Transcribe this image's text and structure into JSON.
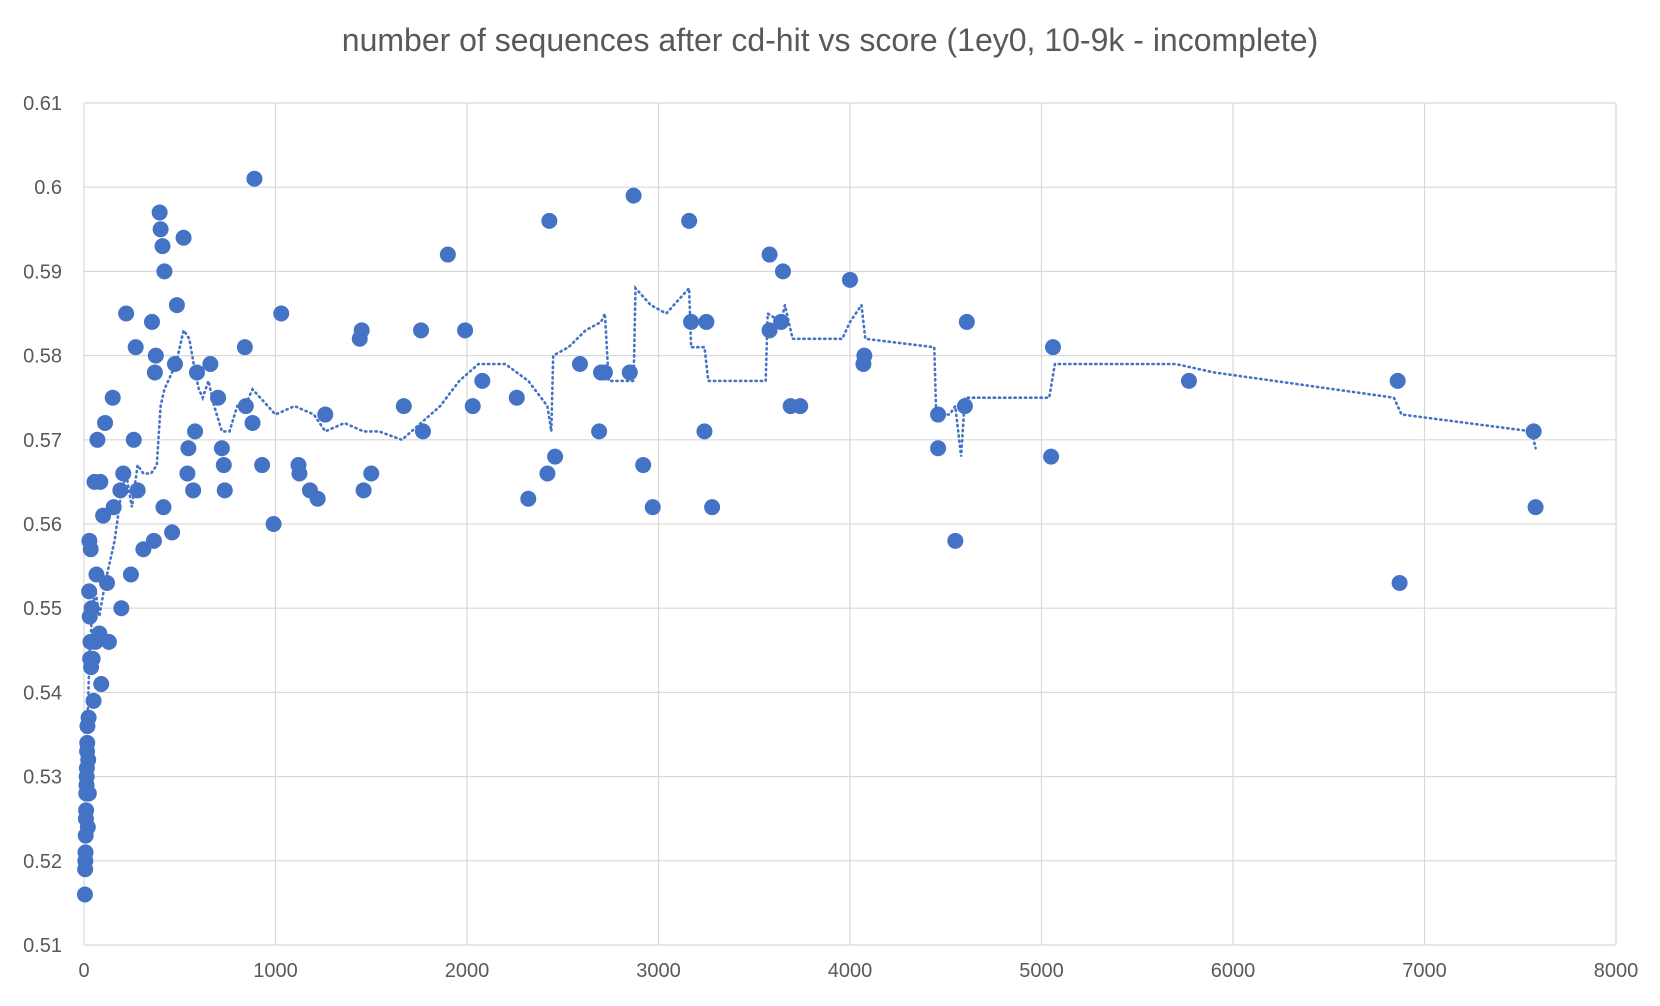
{
  "chart_data": {
    "type": "scatter",
    "title": "number of sequences after cd-hit vs score (1ey0, 10-9k - incomplete)",
    "xlabel": "",
    "ylabel": "",
    "xlim": [
      0,
      8000
    ],
    "ylim": [
      0.51,
      0.61
    ],
    "x_ticks": [
      0,
      1000,
      2000,
      3000,
      4000,
      5000,
      6000,
      7000,
      8000
    ],
    "y_ticks": [
      0.51,
      0.52,
      0.53,
      0.54,
      0.55,
      0.56,
      0.57,
      0.58,
      0.59,
      0.6,
      0.61
    ],
    "x_tick_labels": [
      "0",
      "1000",
      "2000",
      "3000",
      "4000",
      "5000",
      "6000",
      "7000",
      "8000"
    ],
    "y_tick_labels": [
      "0.51",
      "0.52",
      "0.53",
      "0.54",
      "0.55",
      "0.56",
      "0.57",
      "0.58",
      "0.59",
      "0.6",
      "0.61"
    ],
    "grid": true,
    "legend": "none",
    "colors": {
      "points": "#4472C4",
      "trendline": "#4472C4",
      "grid": "#D9D9D9",
      "text": "#595959"
    },
    "series": [
      {
        "points": [
          [
            5,
            0.516
          ],
          [
            6,
            0.519
          ],
          [
            7,
            0.52
          ],
          [
            8,
            0.521
          ],
          [
            9,
            0.523
          ],
          [
            10,
            0.525
          ],
          [
            11,
            0.526
          ],
          [
            12,
            0.528
          ],
          [
            13,
            0.529
          ],
          [
            14,
            0.53
          ],
          [
            15,
            0.531
          ],
          [
            16,
            0.533
          ],
          [
            17,
            0.534
          ],
          [
            18,
            0.536
          ],
          [
            20,
            0.524
          ],
          [
            22,
            0.532
          ],
          [
            24,
            0.537
          ],
          [
            25,
            0.528
          ],
          [
            27,
            0.552
          ],
          [
            28,
            0.558
          ],
          [
            30,
            0.549
          ],
          [
            32,
            0.544
          ],
          [
            34,
            0.546
          ],
          [
            35,
            0.557
          ],
          [
            37,
            0.543
          ],
          [
            40,
            0.55
          ],
          [
            45,
            0.544
          ],
          [
            50,
            0.539
          ],
          [
            55,
            0.565
          ],
          [
            60,
            0.546
          ],
          [
            65,
            0.554
          ],
          [
            70,
            0.57
          ],
          [
            80,
            0.547
          ],
          [
            85,
            0.565
          ],
          [
            90,
            0.541
          ],
          [
            100,
            0.561
          ],
          [
            110,
            0.572
          ],
          [
            120,
            0.553
          ],
          [
            130,
            0.546
          ],
          [
            150,
            0.575
          ],
          [
            155,
            0.562
          ],
          [
            190,
            0.564
          ],
          [
            195,
            0.55
          ],
          [
            205,
            0.566
          ],
          [
            220,
            0.585
          ],
          [
            245,
            0.554
          ],
          [
            260,
            0.57
          ],
          [
            270,
            0.581
          ],
          [
            280,
            0.564
          ],
          [
            310,
            0.557
          ],
          [
            355,
            0.584
          ],
          [
            365,
            0.558
          ],
          [
            370,
            0.578
          ],
          [
            375,
            0.58
          ],
          [
            395,
            0.597
          ],
          [
            400,
            0.595
          ],
          [
            410,
            0.593
          ],
          [
            415,
            0.562
          ],
          [
            420,
            0.59
          ],
          [
            460,
            0.559
          ],
          [
            475,
            0.579
          ],
          [
            485,
            0.586
          ],
          [
            520,
            0.594
          ],
          [
            540,
            0.566
          ],
          [
            545,
            0.569
          ],
          [
            570,
            0.564
          ],
          [
            580,
            0.571
          ],
          [
            590,
            0.578
          ],
          [
            660,
            0.579
          ],
          [
            700,
            0.575
          ],
          [
            720,
            0.569
          ],
          [
            730,
            0.567
          ],
          [
            735,
            0.564
          ],
          [
            840,
            0.581
          ],
          [
            845,
            0.574
          ],
          [
            880,
            0.572
          ],
          [
            890,
            0.601
          ],
          [
            930,
            0.567
          ],
          [
            990,
            0.56
          ],
          [
            1030,
            0.585
          ],
          [
            1120,
            0.567
          ],
          [
            1125,
            0.566
          ],
          [
            1180,
            0.564
          ],
          [
            1220,
            0.563
          ],
          [
            1260,
            0.573
          ],
          [
            1440,
            0.582
          ],
          [
            1450,
            0.583
          ],
          [
            1460,
            0.564
          ],
          [
            1500,
            0.566
          ],
          [
            1670,
            0.574
          ],
          [
            1760,
            0.583
          ],
          [
            1770,
            0.571
          ],
          [
            1900,
            0.592
          ],
          [
            1990,
            0.583
          ],
          [
            2030,
            0.574
          ],
          [
            2080,
            0.577
          ],
          [
            2260,
            0.575
          ],
          [
            2320,
            0.563
          ],
          [
            2420,
            0.566
          ],
          [
            2430,
            0.596
          ],
          [
            2460,
            0.568
          ],
          [
            2590,
            0.579
          ],
          [
            2690,
            0.571
          ],
          [
            2700,
            0.578
          ],
          [
            2720,
            0.578
          ],
          [
            2850,
            0.578
          ],
          [
            2870,
            0.599
          ],
          [
            2920,
            0.567
          ],
          [
            2970,
            0.562
          ],
          [
            3160,
            0.596
          ],
          [
            3170,
            0.584
          ],
          [
            3240,
            0.571
          ],
          [
            3250,
            0.584
          ],
          [
            3280,
            0.562
          ],
          [
            3580,
            0.592
          ],
          [
            3580,
            0.583
          ],
          [
            3640,
            0.584
          ],
          [
            3650,
            0.59
          ],
          [
            3690,
            0.574
          ],
          [
            3740,
            0.574
          ],
          [
            4000,
            0.589
          ],
          [
            4070,
            0.579
          ],
          [
            4075,
            0.58
          ],
          [
            4460,
            0.569
          ],
          [
            4460,
            0.573
          ],
          [
            4550,
            0.558
          ],
          [
            4600,
            0.574
          ],
          [
            4610,
            0.584
          ],
          [
            5050,
            0.568
          ],
          [
            5060,
            0.581
          ],
          [
            5770,
            0.577
          ],
          [
            6860,
            0.577
          ],
          [
            6870,
            0.553
          ],
          [
            7570,
            0.571
          ],
          [
            7580,
            0.562
          ]
        ]
      }
    ],
    "trendline": {
      "type": "moving-average",
      "style": "dotted",
      "points": [
        [
          20,
          0.538
        ],
        [
          30,
          0.545
        ],
        [
          45,
          0.55
        ],
        [
          60,
          0.552
        ],
        [
          80,
          0.549
        ],
        [
          110,
          0.553
        ],
        [
          130,
          0.555
        ],
        [
          160,
          0.558
        ],
        [
          190,
          0.563
        ],
        [
          220,
          0.566
        ],
        [
          250,
          0.562
        ],
        [
          280,
          0.567
        ],
        [
          310,
          0.566
        ],
        [
          350,
          0.566
        ],
        [
          380,
          0.567
        ],
        [
          400,
          0.574
        ],
        [
          420,
          0.576
        ],
        [
          460,
          0.578
        ],
        [
          480,
          0.579
        ],
        [
          500,
          0.581
        ],
        [
          520,
          0.583
        ],
        [
          550,
          0.582
        ],
        [
          580,
          0.578
        ],
        [
          600,
          0.576
        ],
        [
          620,
          0.575
        ],
        [
          650,
          0.577
        ],
        [
          680,
          0.574
        ],
        [
          720,
          0.571
        ],
        [
          760,
          0.571
        ],
        [
          800,
          0.574
        ],
        [
          840,
          0.574
        ],
        [
          880,
          0.576
        ],
        [
          920,
          0.575
        ],
        [
          960,
          0.574
        ],
        [
          1000,
          0.573
        ],
        [
          1100,
          0.574
        ],
        [
          1200,
          0.573
        ],
        [
          1260,
          0.571
        ],
        [
          1360,
          0.572
        ],
        [
          1460,
          0.571
        ],
        [
          1540,
          0.571
        ],
        [
          1660,
          0.57
        ],
        [
          1760,
          0.572
        ],
        [
          1860,
          0.574
        ],
        [
          1960,
          0.577
        ],
        [
          2060,
          0.579
        ],
        [
          2200,
          0.579
        ],
        [
          2320,
          0.577
        ],
        [
          2420,
          0.574
        ],
        [
          2440,
          0.571
        ],
        [
          2450,
          0.58
        ],
        [
          2530,
          0.581
        ],
        [
          2620,
          0.583
        ],
        [
          2700,
          0.584
        ],
        [
          2720,
          0.585
        ],
        [
          2740,
          0.577
        ],
        [
          2870,
          0.577
        ],
        [
          2880,
          0.588
        ],
        [
          2960,
          0.586
        ],
        [
          3040,
          0.585
        ],
        [
          3160,
          0.588
        ],
        [
          3170,
          0.581
        ],
        [
          3240,
          0.581
        ],
        [
          3260,
          0.577
        ],
        [
          3560,
          0.577
        ],
        [
          3570,
          0.585
        ],
        [
          3640,
          0.584
        ],
        [
          3660,
          0.586
        ],
        [
          3700,
          0.582
        ],
        [
          3960,
          0.582
        ],
        [
          4000,
          0.584
        ],
        [
          4060,
          0.586
        ],
        [
          4080,
          0.582
        ],
        [
          4440,
          0.581
        ],
        [
          4450,
          0.573
        ],
        [
          4520,
          0.573
        ],
        [
          4550,
          0.574
        ],
        [
          4580,
          0.568
        ],
        [
          4600,
          0.575
        ],
        [
          4800,
          0.575
        ],
        [
          5040,
          0.575
        ],
        [
          5070,
          0.579
        ],
        [
          5700,
          0.579
        ],
        [
          5900,
          0.578
        ],
        [
          6840,
          0.575
        ],
        [
          6880,
          0.573
        ],
        [
          7560,
          0.571
        ],
        [
          7580,
          0.569
        ]
      ]
    }
  }
}
